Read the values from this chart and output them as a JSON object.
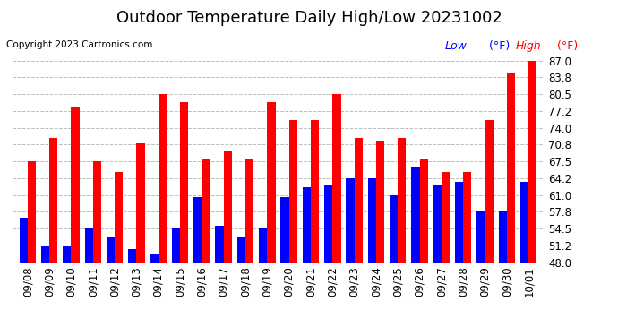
{
  "title": "Outdoor Temperature Daily High/Low 20231002",
  "copyright": "Copyright 2023 Cartronics.com",
  "legend_low": "Low",
  "legend_high": "High",
  "legend_unit": "(°F)",
  "dates": [
    "09/08",
    "09/09",
    "09/10",
    "09/11",
    "09/12",
    "09/13",
    "09/14",
    "09/15",
    "09/16",
    "09/17",
    "09/18",
    "09/19",
    "09/20",
    "09/21",
    "09/22",
    "09/23",
    "09/24",
    "09/25",
    "09/26",
    "09/27",
    "09/28",
    "09/29",
    "09/30",
    "10/01"
  ],
  "highs": [
    67.5,
    72.0,
    78.0,
    67.5,
    65.5,
    71.0,
    80.5,
    79.0,
    68.0,
    69.5,
    68.0,
    79.0,
    75.5,
    75.5,
    80.5,
    72.0,
    71.5,
    72.0,
    68.0,
    65.5,
    65.5,
    75.5,
    84.5,
    87.0
  ],
  "lows": [
    56.5,
    51.2,
    51.2,
    54.5,
    53.0,
    50.5,
    49.5,
    54.5,
    60.5,
    55.0,
    53.0,
    54.5,
    60.5,
    62.5,
    63.0,
    64.2,
    64.2,
    61.0,
    66.5,
    63.0,
    63.5,
    58.0,
    58.0,
    63.5
  ],
  "bar_color_high": "#FF0000",
  "bar_color_low": "#0000FF",
  "ylim_min": 48.0,
  "ylim_max": 87.0,
  "yticks": [
    48.0,
    51.2,
    54.5,
    57.8,
    61.0,
    64.2,
    67.5,
    70.8,
    74.0,
    77.2,
    80.5,
    83.8,
    87.0
  ],
  "background_color": "#ffffff",
  "grid_color": "#bbbbbb",
  "title_fontsize": 13,
  "tick_fontsize": 8.5,
  "copyright_fontsize": 7.5,
  "legend_fontsize": 9
}
